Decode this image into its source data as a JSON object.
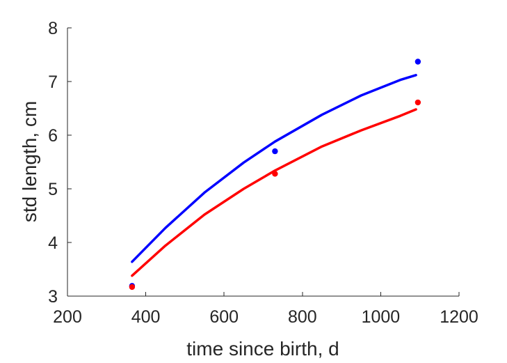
{
  "chart_data": {
    "type": "line",
    "xlabel": "time since birth, d",
    "ylabel": "std length, cm",
    "xlim": [
      200,
      1200
    ],
    "ylim": [
      3,
      8
    ],
    "xticks": [
      200,
      400,
      600,
      800,
      1000,
      1200
    ],
    "yticks": [
      3,
      4,
      5,
      6,
      7,
      8
    ],
    "grid": false,
    "legend": "none",
    "series": [
      {
        "kind": "points",
        "color": "#0000ff",
        "x": [
          365,
          730,
          1095
        ],
        "y": [
          3.19,
          5.7,
          7.37
        ]
      },
      {
        "kind": "points",
        "color": "#ff0000",
        "x": [
          365,
          730,
          1095
        ],
        "y": [
          3.17,
          5.28,
          6.61
        ]
      },
      {
        "kind": "line",
        "color": "#0000ff",
        "x": [
          365,
          450,
          550,
          650,
          730,
          850,
          950,
          1050,
          1090
        ],
        "y": [
          3.64,
          4.27,
          4.93,
          5.49,
          5.88,
          6.38,
          6.74,
          7.03,
          7.12
        ]
      },
      {
        "kind": "line",
        "color": "#ff0000",
        "x": [
          365,
          450,
          550,
          650,
          730,
          850,
          950,
          1050,
          1090
        ],
        "y": [
          3.38,
          3.94,
          4.52,
          5.0,
          5.34,
          5.79,
          6.09,
          6.36,
          6.48
        ]
      }
    ]
  }
}
